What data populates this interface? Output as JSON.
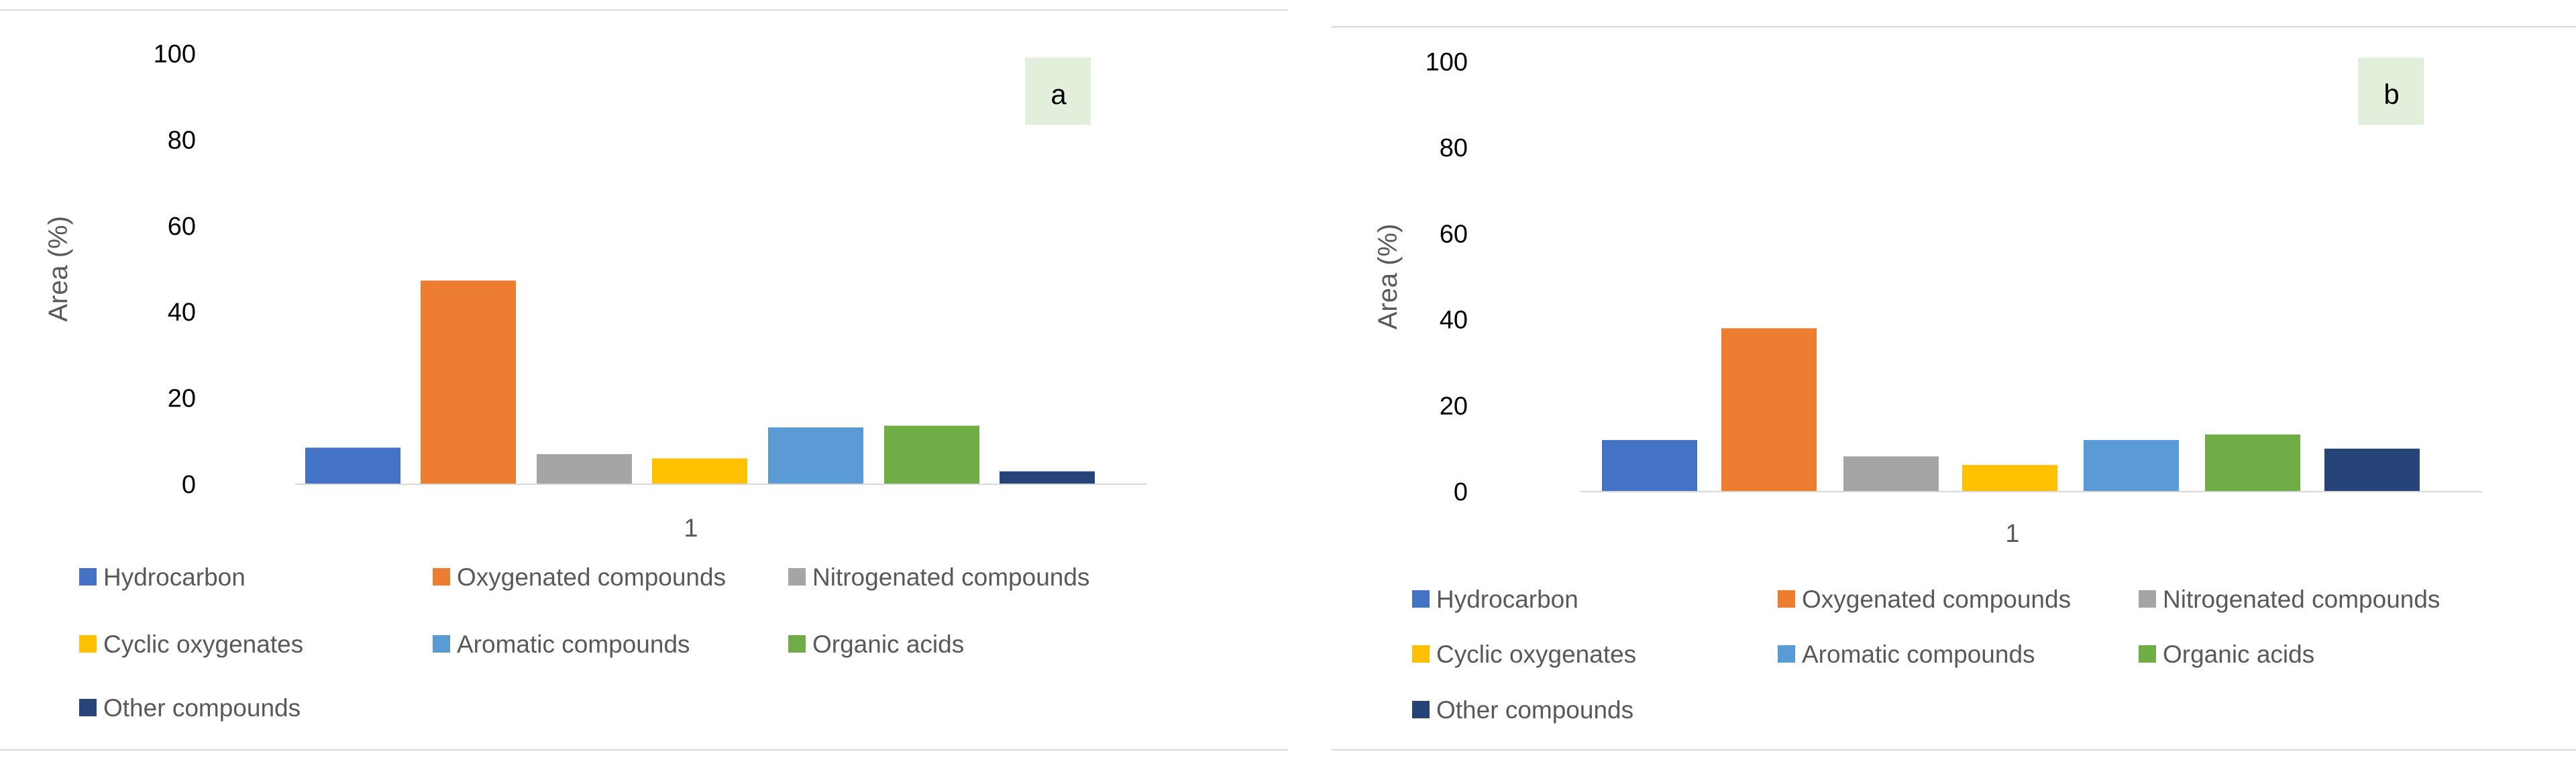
{
  "chart_data": [
    {
      "type": "bar",
      "panel_label": "a",
      "categories": [
        "1"
      ],
      "ylabel": "Area (%)",
      "ylim": [
        0,
        100
      ],
      "yticks": [
        0,
        20,
        40,
        60,
        80,
        100
      ],
      "grid": false,
      "legend_placement": "bottom",
      "series": [
        {
          "name": "Hydrocarbon",
          "values": [
            8.5
          ],
          "color": "#4472C4"
        },
        {
          "name": "Oxygenated compounds",
          "values": [
            47.3
          ],
          "color": "#ED7D31"
        },
        {
          "name": "Nitrogenated compounds",
          "values": [
            7
          ],
          "color": "#A5A5A5"
        },
        {
          "name": "Cyclic oxygenates",
          "values": [
            6
          ],
          "color": "#FFC000"
        },
        {
          "name": "Aromatic compounds",
          "values": [
            13.2
          ],
          "color": "#5B9BD5"
        },
        {
          "name": "Organic acids",
          "values": [
            13.6
          ],
          "color": "#70AD47"
        },
        {
          "name": "Other compounds",
          "values": [
            3
          ],
          "color": "#264478"
        }
      ]
    },
    {
      "type": "bar",
      "panel_label": "b",
      "categories": [
        "1"
      ],
      "ylabel": "Area (%)",
      "ylim": [
        0,
        100
      ],
      "yticks": [
        0,
        20,
        40,
        60,
        80,
        100
      ],
      "grid": false,
      "legend_placement": "bottom",
      "series": [
        {
          "name": "Hydrocarbon",
          "values": [
            12
          ],
          "color": "#4472C4"
        },
        {
          "name": "Oxygenated compounds",
          "values": [
            38
          ],
          "color": "#ED7D31"
        },
        {
          "name": "Nitrogenated compounds",
          "values": [
            8.2
          ],
          "color": "#A5A5A5"
        },
        {
          "name": "Cyclic oxygenates",
          "values": [
            6.2
          ],
          "color": "#FFC000"
        },
        {
          "name": "Aromatic compounds",
          "values": [
            12
          ],
          "color": "#5B9BD5"
        },
        {
          "name": "Organic acids",
          "values": [
            13.3
          ],
          "color": "#70AD47"
        },
        {
          "name": "Other compounds",
          "values": [
            10
          ],
          "color": "#264478"
        }
      ]
    }
  ]
}
